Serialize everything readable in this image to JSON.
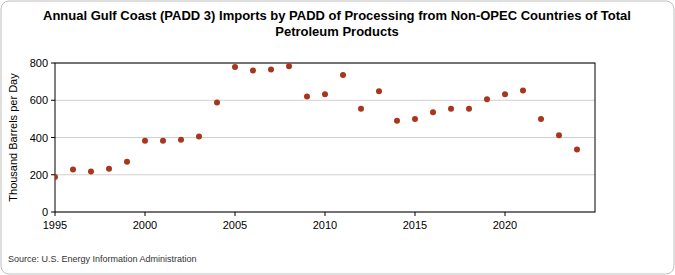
{
  "chart_data": {
    "type": "scatter",
    "title": "Annual Gulf Coast (PADD 3) Imports by PADD of Processing from Non-OPEC Countries of Total Petroleum Products",
    "y_label": "Thousand Barrels per Day",
    "source": "Source: U.S. Energy Information Administration",
    "x": [
      1995,
      1996,
      1997,
      1998,
      1999,
      2000,
      2001,
      2002,
      2003,
      2004,
      2005,
      2006,
      2007,
      2008,
      2009,
      2010,
      2011,
      2012,
      2013,
      2014,
      2015,
      2016,
      2017,
      2018,
      2019,
      2020,
      2021,
      2022,
      2023,
      2024
    ],
    "values": [
      188,
      228,
      218,
      232,
      270,
      383,
      383,
      388,
      405,
      588,
      778,
      760,
      765,
      782,
      620,
      632,
      735,
      555,
      648,
      490,
      500,
      535,
      555,
      555,
      605,
      632,
      652,
      500,
      412,
      335
    ],
    "color": "#a8361c",
    "marker": "circle",
    "xlim": [
      1995,
      2025
    ],
    "xticks": [
      1995,
      2000,
      2005,
      2010,
      2015,
      2020
    ],
    "ylim": [
      0,
      800
    ],
    "yticks": [
      0,
      200,
      400,
      600,
      800
    ],
    "grid": true
  }
}
